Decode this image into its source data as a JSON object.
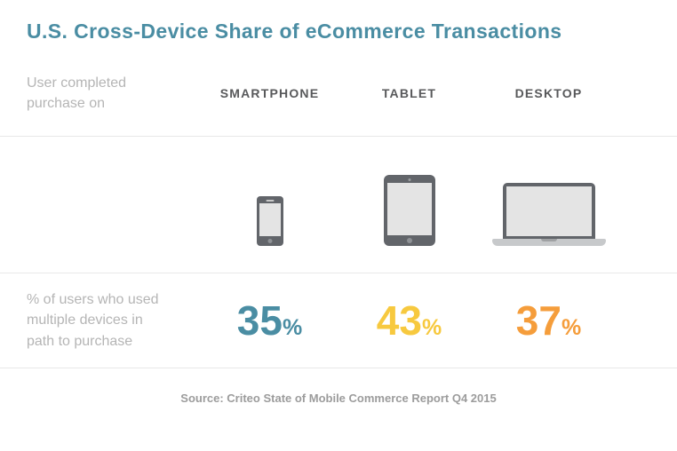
{
  "title": "U.S. Cross-Device Share of eCommerce Transactions",
  "rows": {
    "header_label": "User completed purchase on",
    "values_label": "% of users who used multiple devices in path to purchase"
  },
  "columns": [
    {
      "header": "SMARTPHONE",
      "icon": "smartphone-icon",
      "value": "35",
      "unit": "%",
      "color": "#4a8da3"
    },
    {
      "header": "TABLET",
      "icon": "tablet-icon",
      "value": "43",
      "unit": "%",
      "color": "#f7c93f"
    },
    {
      "header": "DESKTOP",
      "icon": "laptop-icon",
      "value": "37",
      "unit": "%",
      "color": "#f59d3b"
    }
  ],
  "source": "Source: Criteo State of Mobile Commerce Report Q4 2015",
  "colors": {
    "title": "#4a8da3",
    "header_text": "#58595b",
    "label_text": "#b5b5b5",
    "divider": "#e8e8e8",
    "device_frame": "#62656a",
    "device_screen": "#e4e4e4",
    "smartphone_value": "#4a8da3",
    "tablet_value": "#f7c93f",
    "desktop_value": "#f59d3b"
  },
  "chart_data": {
    "type": "table",
    "title": "U.S. Cross-Device Share of eCommerce Transactions",
    "categories": [
      "Smartphone",
      "Tablet",
      "Desktop"
    ],
    "series": [
      {
        "name": "% of users who used multiple devices in path to purchase",
        "values": [
          35,
          43,
          37
        ]
      }
    ],
    "unit": "percent",
    "row_labels": [
      "User completed purchase on",
      "% of users who used multiple devices in path to purchase"
    ],
    "legend_position": "none",
    "source": "Source: Criteo State of Mobile Commerce Report Q4 2015"
  }
}
